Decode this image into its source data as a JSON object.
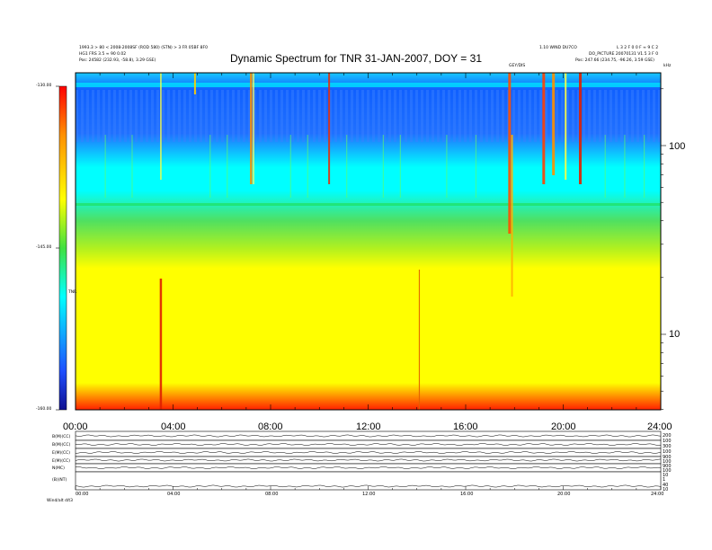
{
  "chart_data": {
    "type": "heatmap",
    "title": "Dynamic Spectrum for TNR 31-JAN-2007, DOY = 31",
    "x_ticks": [
      "00:00",
      "04:00",
      "08:00",
      "12:00",
      "16:00",
      "20:00",
      "24:00"
    ],
    "xlim_hours": [
      0,
      24
    ],
    "y_right_ticks": [
      "100",
      "10"
    ],
    "y_right_unit": "kHz",
    "ylim_khz_approx": [
      4,
      250
    ],
    "colorbar": {
      "label": "TNR",
      "ticks": [
        "-130.00",
        "-145.00",
        "-160.00"
      ],
      "range": [
        -160,
        -130
      ],
      "colors": [
        "#1010a0",
        "#2050ff",
        "#00ffff",
        "#40e040",
        "#ffff00",
        "#ff8000",
        "#ff0000"
      ]
    },
    "header_left": [
      "1993.3 > 80 < 2008-2008SF (ROD 580) (STN) > 3 FR 05BF 8F0",
      "HG1 FRS 3.5 ≈ 90 0.02",
      "Pos:   24582 (232.93, -58.8), 3.29 GSE)"
    ],
    "header_right_center": "1.10 WIND DU7CO",
    "header_right": [
      "L 3 2 F 0 0 F ≈ 9 C 2",
      "DO_PICTURE 20070131 V1.5 3 F 0",
      "Pos:   247.66 (234.75, -96.26, 3.59 GSE)"
    ],
    "event_label": "GEY/DIS",
    "bottom_panels": [
      {
        "label": "B(M)(CC)",
        "right_ticks": [
          "200",
          "100"
        ]
      },
      {
        "label": "B(M)(CC)",
        "right_ticks": [
          "300",
          "100"
        ]
      },
      {
        "label": "E(M)(CC)",
        "right_ticks": [
          "900",
          "100"
        ]
      },
      {
        "label": "E(M)(CC)",
        "right_ticks": [
          "900",
          "100"
        ]
      },
      {
        "label": "N(MC)",
        "right_ticks": [
          "10",
          "1"
        ]
      },
      {
        "label": "(B)(NT)",
        "right_ticks": [
          "40",
          "10"
        ]
      }
    ],
    "bottom_x_ticks": [
      "00:00",
      "04:00",
      "08:00",
      "12:00",
      "16:00",
      "20:00",
      "24:00"
    ],
    "footer_label": "Wind/alt   d/t3"
  }
}
